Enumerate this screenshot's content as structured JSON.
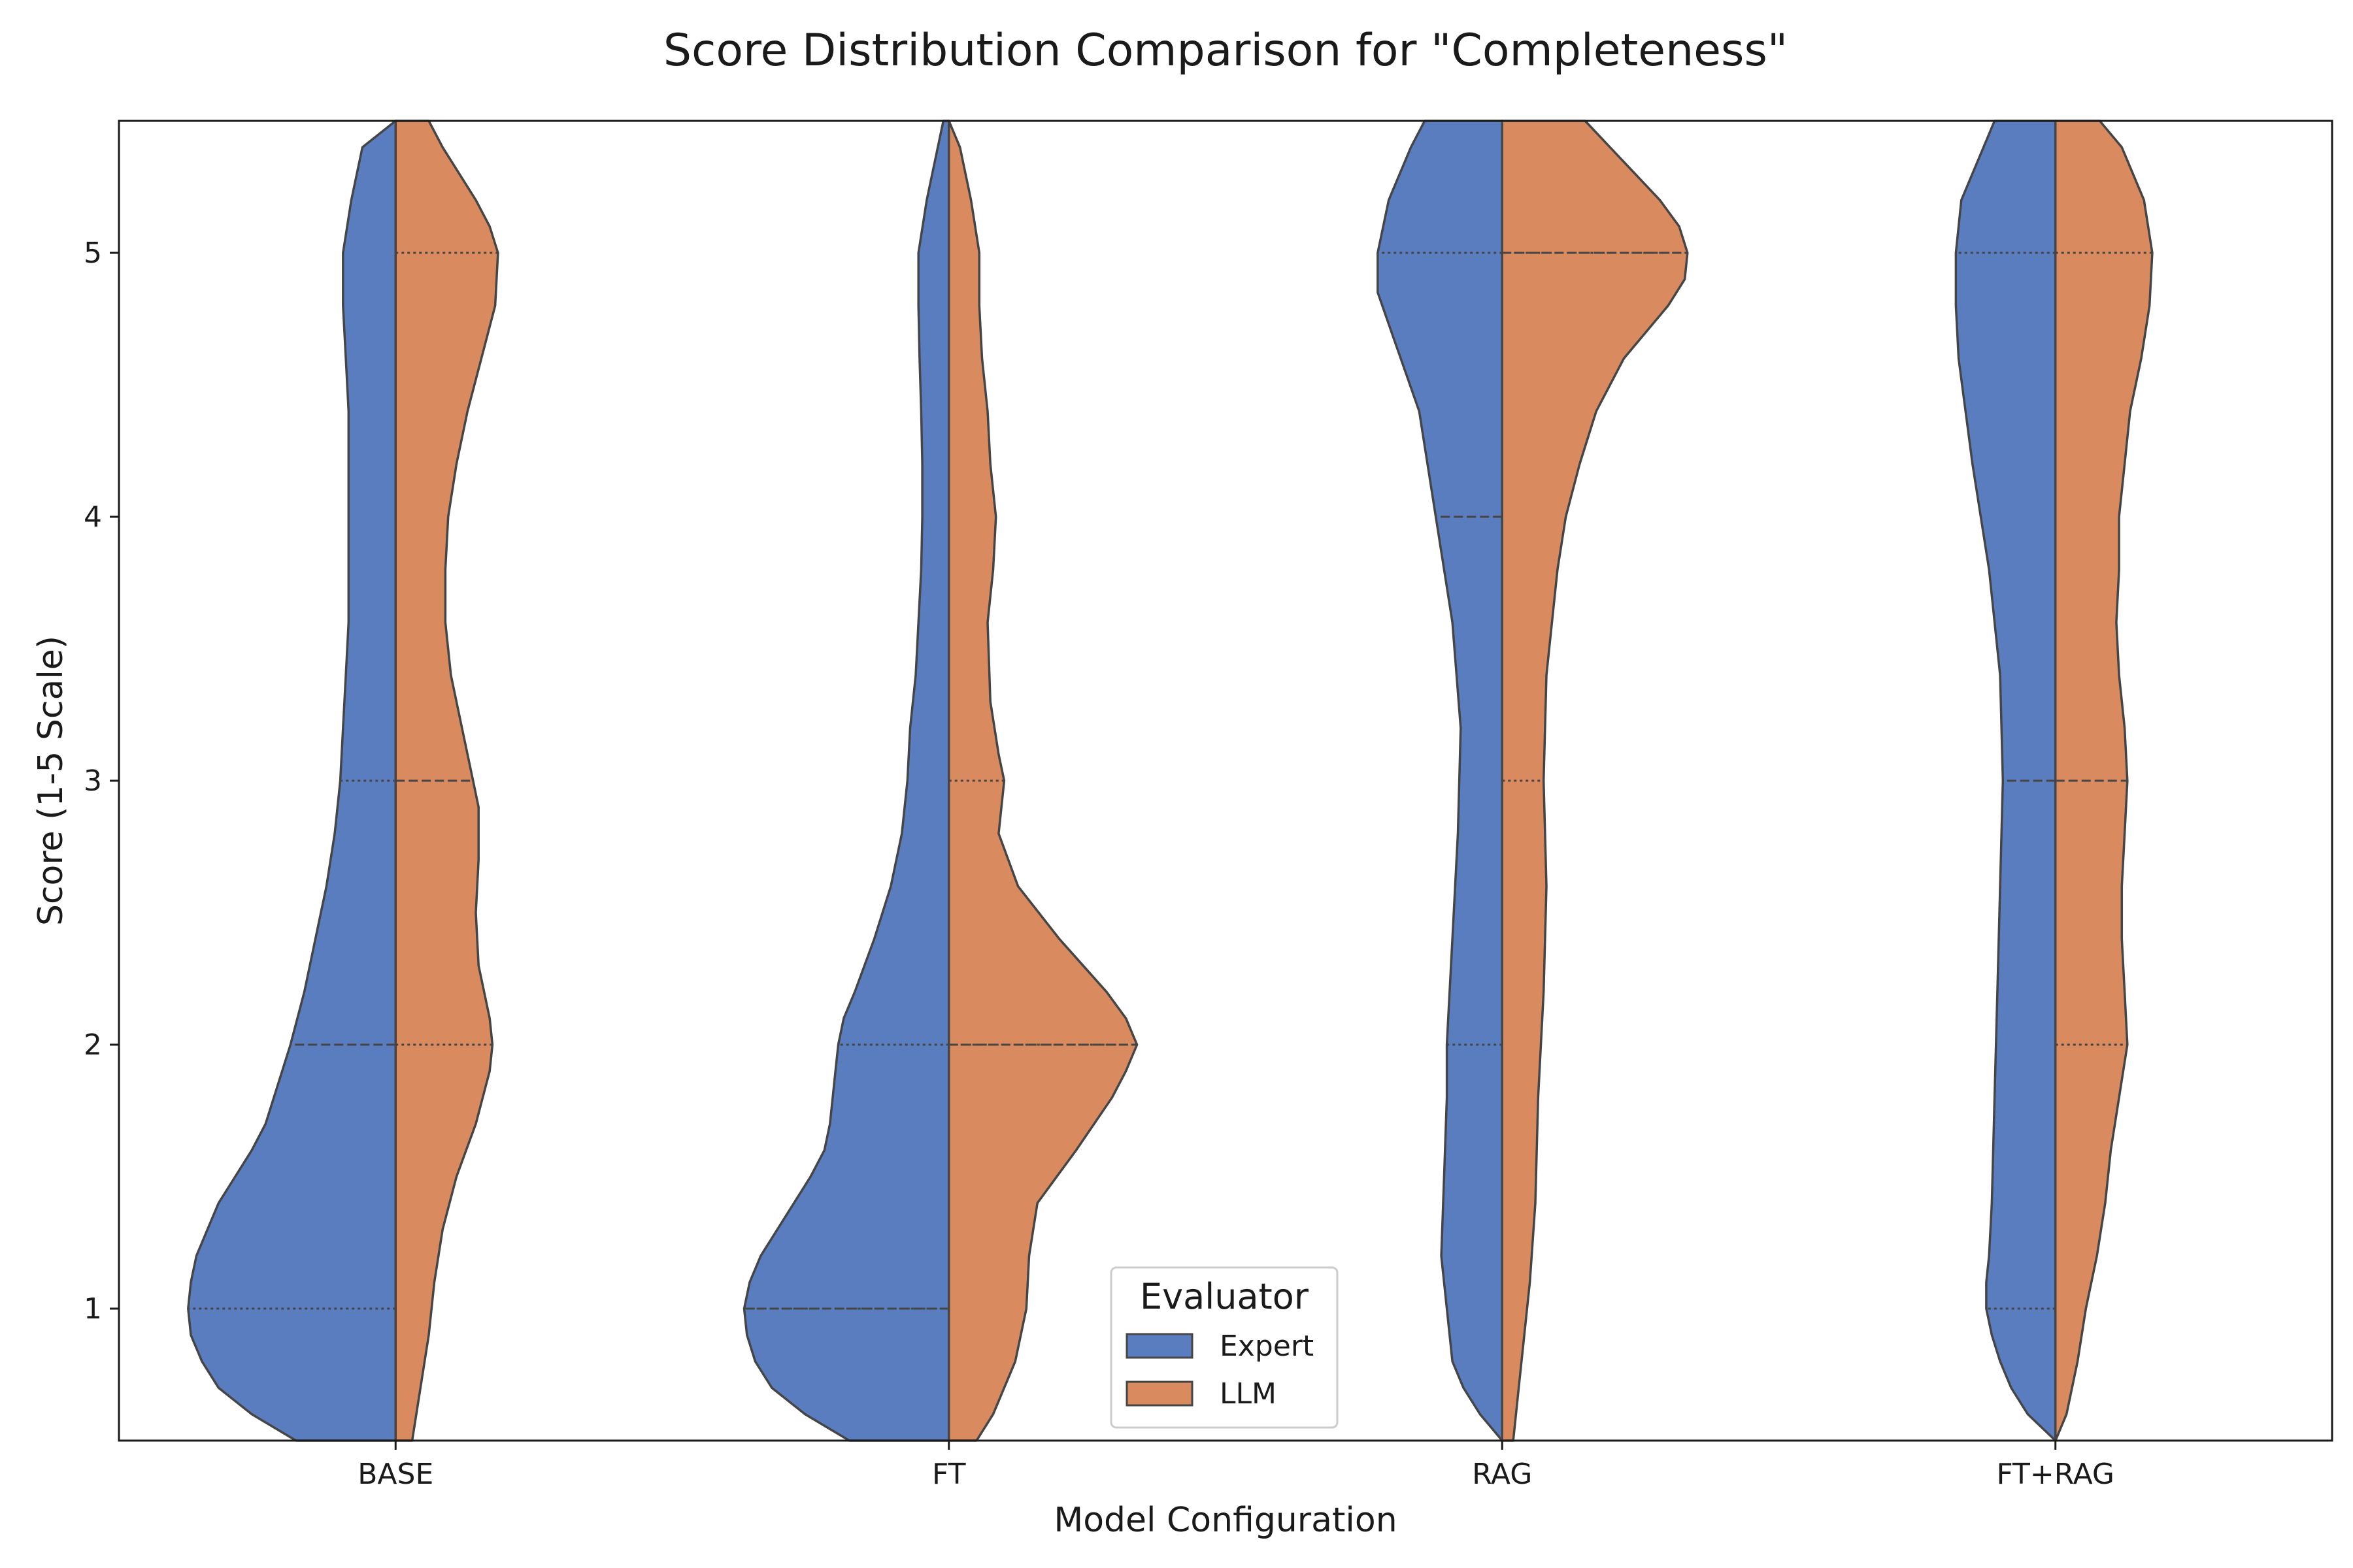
{
  "chart_data": {
    "type": "violin",
    "split": true,
    "title": "Score Distribution Comparison for \"Completeness\"",
    "xlabel": "Model Configuration",
    "ylabel": "Score (1-5 Scale)",
    "categories": [
      "BASE",
      "FT",
      "RAG",
      "FT+RAG"
    ],
    "yticks": [
      1,
      2,
      3,
      4,
      5
    ],
    "ylim": [
      0.5,
      5.5
    ],
    "grid": false,
    "inner": "quartile",
    "colors": {
      "Expert": "#5a7dc0",
      "LLM": "#d98b5f",
      "outline": "#454545"
    },
    "legend": {
      "title": "Evaluator",
      "position": "lower-center",
      "entries": [
        "Expert",
        "LLM"
      ]
    },
    "density_max_relative_width": 0.4,
    "series": [
      {
        "name": "Expert",
        "side": "left",
        "violins": [
          {
            "category": "BASE",
            "quartiles": [
              1,
              2,
              3
            ],
            "density": [
              [
                0.5,
                0.18
              ],
              [
                0.6,
                0.26
              ],
              [
                0.7,
                0.32
              ],
              [
                0.8,
                0.35
              ],
              [
                0.9,
                0.37
              ],
              [
                1.0,
                0.375
              ],
              [
                1.1,
                0.37
              ],
              [
                1.2,
                0.36
              ],
              [
                1.3,
                0.34
              ],
              [
                1.4,
                0.32
              ],
              [
                1.5,
                0.29
              ],
              [
                1.6,
                0.26
              ],
              [
                1.7,
                0.235
              ],
              [
                1.8,
                0.22
              ],
              [
                1.9,
                0.205
              ],
              [
                2.0,
                0.19
              ],
              [
                2.2,
                0.165
              ],
              [
                2.4,
                0.145
              ],
              [
                2.6,
                0.125
              ],
              [
                2.8,
                0.11
              ],
              [
                3.0,
                0.1
              ],
              [
                3.2,
                0.095
              ],
              [
                3.4,
                0.09
              ],
              [
                3.6,
                0.085
              ],
              [
                3.8,
                0.085
              ],
              [
                4.0,
                0.085
              ],
              [
                4.2,
                0.085
              ],
              [
                4.4,
                0.085
              ],
              [
                4.6,
                0.09
              ],
              [
                4.8,
                0.095
              ],
              [
                5.0,
                0.095
              ],
              [
                5.2,
                0.08
              ],
              [
                5.4,
                0.06
              ],
              [
                5.5,
                0.0
              ]
            ]
          },
          {
            "category": "FT",
            "quartiles": [
              1,
              1,
              2
            ],
            "density": [
              [
                0.5,
                0.18
              ],
              [
                0.6,
                0.26
              ],
              [
                0.7,
                0.32
              ],
              [
                0.8,
                0.35
              ],
              [
                0.9,
                0.365
              ],
              [
                1.0,
                0.37
              ],
              [
                1.1,
                0.36
              ],
              [
                1.2,
                0.34
              ],
              [
                1.3,
                0.31
              ],
              [
                1.4,
                0.28
              ],
              [
                1.5,
                0.25
              ],
              [
                1.6,
                0.225
              ],
              [
                1.7,
                0.215
              ],
              [
                1.8,
                0.21
              ],
              [
                1.9,
                0.205
              ],
              [
                2.0,
                0.2
              ],
              [
                2.1,
                0.19
              ],
              [
                2.2,
                0.17
              ],
              [
                2.4,
                0.135
              ],
              [
                2.6,
                0.105
              ],
              [
                2.8,
                0.085
              ],
              [
                3.0,
                0.075
              ],
              [
                3.2,
                0.07
              ],
              [
                3.4,
                0.06
              ],
              [
                3.6,
                0.055
              ],
              [
                3.8,
                0.05
              ],
              [
                4.0,
                0.048
              ],
              [
                4.2,
                0.048
              ],
              [
                4.4,
                0.05
              ],
              [
                4.6,
                0.053
              ],
              [
                4.8,
                0.055
              ],
              [
                5.0,
                0.055
              ],
              [
                5.2,
                0.04
              ],
              [
                5.4,
                0.02
              ],
              [
                5.5,
                0.01
              ]
            ]
          },
          {
            "category": "RAG",
            "quartiles": [
              2,
              4,
              5
            ],
            "density": [
              [
                0.5,
                0.0
              ],
              [
                0.6,
                0.04
              ],
              [
                0.7,
                0.07
              ],
              [
                0.8,
                0.09
              ],
              [
                1.0,
                0.1
              ],
              [
                1.2,
                0.11
              ],
              [
                1.5,
                0.105
              ],
              [
                1.8,
                0.1
              ],
              [
                2.0,
                0.1
              ],
              [
                2.4,
                0.09
              ],
              [
                2.8,
                0.08
              ],
              [
                3.2,
                0.075
              ],
              [
                3.6,
                0.09
              ],
              [
                4.0,
                0.12
              ],
              [
                4.4,
                0.15
              ],
              [
                4.7,
                0.2
              ],
              [
                4.85,
                0.225
              ],
              [
                5.0,
                0.225
              ],
              [
                5.2,
                0.205
              ],
              [
                5.4,
                0.165
              ],
              [
                5.5,
                0.14
              ]
            ]
          },
          {
            "category": "FT+RAG",
            "quartiles": [
              1,
              3,
              5
            ],
            "density": [
              [
                0.5,
                0.0
              ],
              [
                0.6,
                0.05
              ],
              [
                0.7,
                0.08
              ],
              [
                0.8,
                0.1
              ],
              [
                0.9,
                0.115
              ],
              [
                1.0,
                0.125
              ],
              [
                1.1,
                0.125
              ],
              [
                1.2,
                0.12
              ],
              [
                1.4,
                0.115
              ],
              [
                1.8,
                0.11
              ],
              [
                2.2,
                0.105
              ],
              [
                2.6,
                0.1
              ],
              [
                3.0,
                0.095
              ],
              [
                3.4,
                0.1
              ],
              [
                3.8,
                0.12
              ],
              [
                4.2,
                0.15
              ],
              [
                4.6,
                0.175
              ],
              [
                4.8,
                0.18
              ],
              [
                5.0,
                0.18
              ],
              [
                5.2,
                0.17
              ],
              [
                5.4,
                0.13
              ],
              [
                5.5,
                0.11
              ]
            ]
          }
        ]
      },
      {
        "name": "LLM",
        "side": "right",
        "violins": [
          {
            "category": "BASE",
            "quartiles": [
              2,
              3,
              5
            ],
            "density": [
              [
                0.5,
                0.03
              ],
              [
                0.7,
                0.045
              ],
              [
                0.9,
                0.06
              ],
              [
                1.1,
                0.07
              ],
              [
                1.3,
                0.085
              ],
              [
                1.5,
                0.11
              ],
              [
                1.7,
                0.145
              ],
              [
                1.9,
                0.17
              ],
              [
                2.0,
                0.175
              ],
              [
                2.1,
                0.17
              ],
              [
                2.3,
                0.15
              ],
              [
                2.5,
                0.145
              ],
              [
                2.7,
                0.15
              ],
              [
                2.9,
                0.15
              ],
              [
                3.0,
                0.14
              ],
              [
                3.2,
                0.12
              ],
              [
                3.4,
                0.1
              ],
              [
                3.6,
                0.09
              ],
              [
                3.8,
                0.09
              ],
              [
                4.0,
                0.095
              ],
              [
                4.2,
                0.11
              ],
              [
                4.4,
                0.13
              ],
              [
                4.6,
                0.155
              ],
              [
                4.8,
                0.18
              ],
              [
                5.0,
                0.185
              ],
              [
                5.1,
                0.17
              ],
              [
                5.2,
                0.145
              ],
              [
                5.4,
                0.085
              ],
              [
                5.5,
                0.06
              ]
            ]
          },
          {
            "category": "FT",
            "quartiles": [
              2,
              2,
              3
            ],
            "density": [
              [
                0.5,
                0.05
              ],
              [
                0.6,
                0.08
              ],
              [
                0.8,
                0.12
              ],
              [
                1.0,
                0.14
              ],
              [
                1.2,
                0.145
              ],
              [
                1.4,
                0.16
              ],
              [
                1.6,
                0.23
              ],
              [
                1.8,
                0.295
              ],
              [
                1.9,
                0.32
              ],
              [
                2.0,
                0.34
              ],
              [
                2.1,
                0.32
              ],
              [
                2.2,
                0.285
              ],
              [
                2.4,
                0.2
              ],
              [
                2.6,
                0.125
              ],
              [
                2.8,
                0.09
              ],
              [
                3.0,
                0.1
              ],
              [
                3.1,
                0.09
              ],
              [
                3.3,
                0.075
              ],
              [
                3.6,
                0.07
              ],
              [
                3.8,
                0.08
              ],
              [
                4.0,
                0.085
              ],
              [
                4.2,
                0.075
              ],
              [
                4.4,
                0.07
              ],
              [
                4.6,
                0.06
              ],
              [
                4.8,
                0.055
              ],
              [
                5.0,
                0.055
              ],
              [
                5.2,
                0.04
              ],
              [
                5.4,
                0.02
              ],
              [
                5.5,
                0.0
              ]
            ]
          },
          {
            "category": "RAG",
            "quartiles": [
              3,
              5,
              5
            ],
            "density": [
              [
                0.5,
                0.02
              ],
              [
                0.7,
                0.03
              ],
              [
                0.9,
                0.04
              ],
              [
                1.1,
                0.05
              ],
              [
                1.4,
                0.06
              ],
              [
                1.8,
                0.065
              ],
              [
                2.2,
                0.075
              ],
              [
                2.6,
                0.08
              ],
              [
                3.0,
                0.075
              ],
              [
                3.4,
                0.08
              ],
              [
                3.8,
                0.1
              ],
              [
                4.0,
                0.115
              ],
              [
                4.2,
                0.14
              ],
              [
                4.4,
                0.17
              ],
              [
                4.6,
                0.22
              ],
              [
                4.8,
                0.3
              ],
              [
                4.9,
                0.33
              ],
              [
                5.0,
                0.335
              ],
              [
                5.1,
                0.32
              ],
              [
                5.2,
                0.285
              ],
              [
                5.4,
                0.195
              ],
              [
                5.5,
                0.15
              ]
            ]
          },
          {
            "category": "FT+RAG",
            "quartiles": [
              2,
              3,
              5
            ],
            "density": [
              [
                0.5,
                0.0
              ],
              [
                0.6,
                0.02
              ],
              [
                0.8,
                0.04
              ],
              [
                1.0,
                0.055
              ],
              [
                1.2,
                0.075
              ],
              [
                1.4,
                0.09
              ],
              [
                1.6,
                0.1
              ],
              [
                1.8,
                0.115
              ],
              [
                2.0,
                0.13
              ],
              [
                2.2,
                0.125
              ],
              [
                2.4,
                0.12
              ],
              [
                2.6,
                0.12
              ],
              [
                2.8,
                0.125
              ],
              [
                3.0,
                0.13
              ],
              [
                3.2,
                0.125
              ],
              [
                3.4,
                0.115
              ],
              [
                3.6,
                0.11
              ],
              [
                3.8,
                0.115
              ],
              [
                4.0,
                0.115
              ],
              [
                4.2,
                0.125
              ],
              [
                4.4,
                0.135
              ],
              [
                4.6,
                0.155
              ],
              [
                4.8,
                0.17
              ],
              [
                5.0,
                0.175
              ],
              [
                5.2,
                0.16
              ],
              [
                5.4,
                0.12
              ],
              [
                5.5,
                0.08
              ]
            ]
          }
        ]
      }
    ]
  }
}
